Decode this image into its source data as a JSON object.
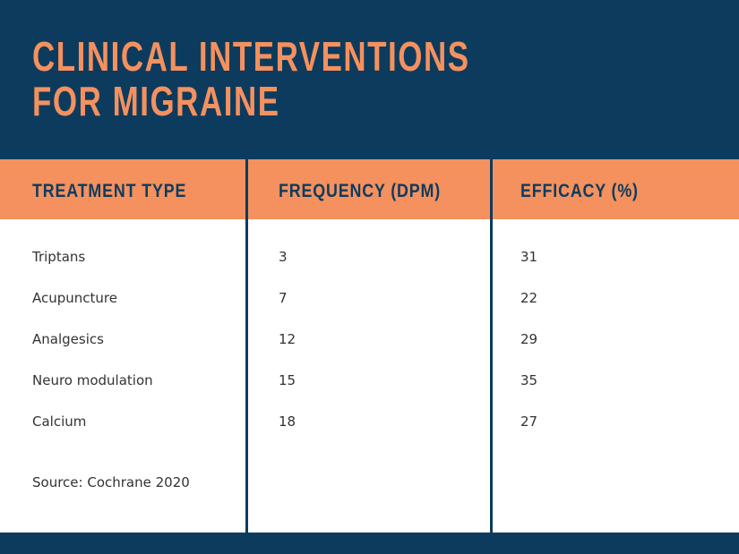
{
  "header": {
    "title": "CLINICAL INTERVENTIONS FOR MIGRAINE"
  },
  "table": {
    "columns": [
      "TREATMENT TYPE",
      "FREQUENCY (DPM)",
      "EFFICACY (%)"
    ],
    "rows": [
      [
        "Triptans",
        "3",
        "31"
      ],
      [
        "Acupuncture",
        "7",
        "22"
      ],
      [
        "Analgesics",
        "12",
        "29"
      ],
      [
        "Neuro modulation",
        "15",
        "35"
      ],
      [
        "Calcium",
        "18",
        "27"
      ]
    ]
  },
  "footer": {
    "source": "Source: Cochrane 2020"
  }
}
